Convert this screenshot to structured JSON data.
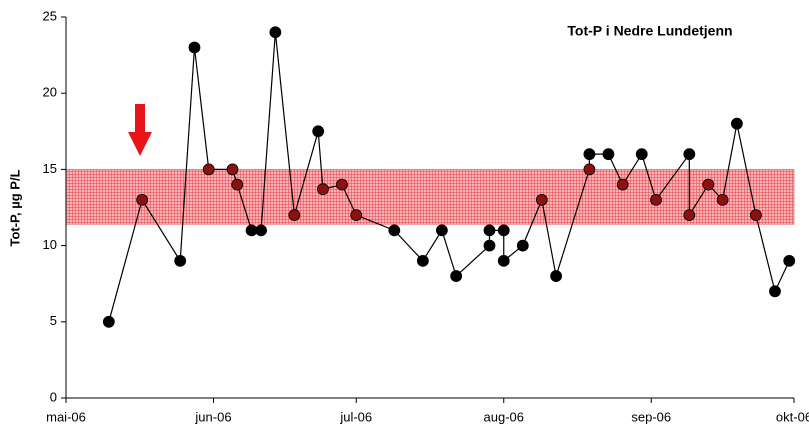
{
  "chart_data": {
    "type": "line",
    "title": "Tot-P i Nedre Lundetjenn",
    "y_label": "Tot-P, µg P/L",
    "x": [
      9,
      16,
      24,
      27,
      30,
      35,
      36,
      39,
      41,
      44,
      48,
      53,
      54,
      58,
      61,
      69,
      75,
      79,
      82,
      89,
      89,
      92,
      92,
      96,
      100,
      103,
      110,
      110,
      114,
      117,
      121,
      124,
      131,
      131,
      135,
      138,
      141,
      145,
      149,
      152
    ],
    "series": [
      {
        "name": "Tot-P",
        "color": "#000000",
        "values": [
          5,
          13,
          9,
          23,
          15,
          15,
          14,
          11,
          11,
          24,
          12,
          17.5,
          13.7,
          14,
          12,
          11,
          9,
          11,
          8,
          10,
          11,
          11,
          9,
          10,
          13,
          8,
          15,
          16,
          16,
          14,
          16,
          13,
          16,
          12,
          14,
          13,
          18,
          12,
          7,
          9
        ]
      }
    ],
    "band": [
      11.4,
      15
    ],
    "band_color": "#e8414a",
    "band_marker_color": "#8b1010",
    "xlim": [
      0,
      153
    ],
    "xticks": [
      {
        "value": 0,
        "label": "mai-06"
      },
      {
        "value": 31,
        "label": "jun-06"
      },
      {
        "value": 61,
        "label": "jul-06"
      },
      {
        "value": 92,
        "label": "aug-06"
      },
      {
        "value": 123,
        "label": "sep-06"
      },
      {
        "value": 153,
        "label": "okt-06"
      }
    ],
    "ylim": [
      0,
      25
    ],
    "yticks": [
      0,
      5,
      10,
      15,
      20,
      25
    ]
  }
}
